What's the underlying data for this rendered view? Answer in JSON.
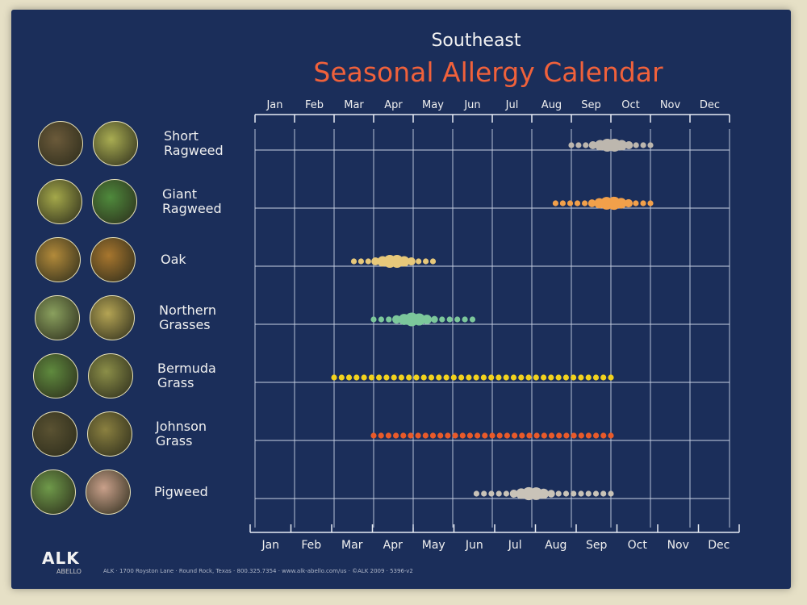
{
  "poster": {
    "region": "Southeast",
    "title": "Seasonal Allergy Calendar"
  },
  "footer": {
    "logo": "ALK",
    "logo_sub": "ABELLO",
    "text": "ALK · 1700 Royston Lane · Round Rock, Texas · 800.325.7354 · www.alk-abello.com/us · ©ALK 2009 · 5396-v2"
  },
  "chart_data": {
    "type": "timeline",
    "title": "Seasonal Allergy Calendar",
    "subtitle": "Southeast",
    "months": [
      "Jan",
      "Feb",
      "Mar",
      "Apr",
      "May",
      "Jun",
      "Jul",
      "Aug",
      "Sep",
      "Oct",
      "Nov",
      "Dec"
    ],
    "grid": true,
    "rows": [
      {
        "name": "Short Ragweed",
        "label_lines": [
          "Short",
          "Ragweed"
        ],
        "color": "#bdb7ae",
        "start_month": 8.0,
        "end_month": 10.0,
        "peak_month": 9.0
      },
      {
        "name": "Giant Ragweed",
        "label_lines": [
          "Giant",
          "Ragweed"
        ],
        "color": "#f2a04a",
        "start_month": 7.6,
        "end_month": 10.0,
        "peak_month": 9.0
      },
      {
        "name": "Oak",
        "label_lines": [
          "Oak"
        ],
        "color": "#e7c87a",
        "start_month": 2.5,
        "end_month": 4.5,
        "peak_month": 3.5
      },
      {
        "name": "Northern Grasses",
        "label_lines": [
          "Northern",
          "Grasses"
        ],
        "color": "#7cc79b",
        "start_month": 3.0,
        "end_month": 5.5,
        "peak_month": 4.0
      },
      {
        "name": "Bermuda Grass",
        "label_lines": [
          "Bermuda",
          "Grass"
        ],
        "color": "#f2d21e",
        "start_month": 2.0,
        "end_month": 9.0,
        "peak_month": null
      },
      {
        "name": "Johnson Grass",
        "label_lines": [
          "Johnson",
          "Grass"
        ],
        "color": "#e85a2a",
        "start_month": 3.0,
        "end_month": 9.0,
        "peak_month": null
      },
      {
        "name": "Pigweed",
        "label_lines": [
          "Pigweed"
        ],
        "color": "#c9c3b8",
        "start_month": 5.6,
        "end_month": 9.0,
        "peak_month": 7.0
      }
    ]
  },
  "photos": {
    "colors": [
      [
        "#6b5a3a",
        "#a9ad52"
      ],
      [
        "#a4a84a",
        "#4f8a3c"
      ],
      [
        "#b28a3a",
        "#a7762e"
      ],
      [
        "#8aa05e",
        "#b4a454"
      ],
      [
        "#5f8a3e",
        "#8b8e48"
      ],
      [
        "#5a5232",
        "#8a8040"
      ],
      [
        "#6f9a4a",
        "#c9a08a"
      ]
    ]
  }
}
